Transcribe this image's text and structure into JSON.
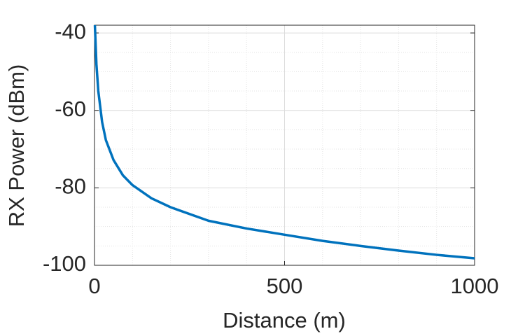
{
  "chart_data": {
    "type": "line",
    "xlabel": "Distance (m)",
    "ylabel": "RX Power (dBm)",
    "x": [
      1,
      5,
      10,
      20,
      30,
      50,
      75,
      100,
      150,
      200,
      300,
      400,
      500,
      600,
      700,
      800,
      900,
      1000
    ],
    "series": [
      {
        "color": "#0072bd",
        "values": [
          -38,
          -48,
          -55,
          -63,
          -67.7,
          -72.8,
          -76.8,
          -79.3,
          -82.7,
          -85.0,
          -88.5,
          -90.5,
          -92.1,
          -93.7,
          -95.0,
          -96.2,
          -97.3,
          -98.2
        ]
      }
    ],
    "xlim": [
      0,
      1000
    ],
    "xticks": [
      0,
      500,
      1000
    ],
    "ylim": [
      -100,
      -38
    ],
    "yticks": [
      -100,
      -80,
      -60,
      -40
    ],
    "grid": true,
    "minor_grid": true
  }
}
